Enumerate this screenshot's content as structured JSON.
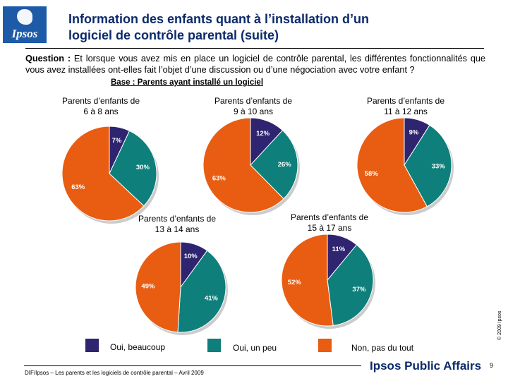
{
  "header": {
    "logo_text": "Ipsos",
    "title_line1": "Information des enfants quant à l’installation d’un",
    "title_line2": "logiciel de contrôle parental (suite)"
  },
  "question": {
    "label": "Question :",
    "text": "Et lorsque vous avez mis en place un logiciel de contrôle parental, les différentes fonctionnalités que vous avez installées ont-elles fait l’objet d’une discussion ou d’une négociation avec votre enfant ?",
    "base": "Base : Parents ayant installé un logiciel"
  },
  "legend": [
    {
      "label": "Oui, beaucoup",
      "color": "#2e2470"
    },
    {
      "label": "Oui, un peu",
      "color": "#0e7f7a"
    },
    {
      "label": "Non, pas du tout",
      "color": "#e85d12"
    }
  ],
  "chart_data": [
    {
      "type": "pie",
      "title": "Parents d’enfants de 6 à 8 ans",
      "title_line1": "Parents d’enfants de",
      "title_line2": "6 à 8 ans",
      "categories": [
        "Oui, beaucoup",
        "Oui, un peu",
        "Non, pas du tout"
      ],
      "values": [
        7,
        30,
        63
      ],
      "labels": [
        "7%",
        "30%",
        "63%"
      ]
    },
    {
      "type": "pie",
      "title": "Parents d’enfants de 9 à 10 ans",
      "title_line1": "Parents d’enfants de",
      "title_line2": "9 à 10 ans",
      "categories": [
        "Oui, beaucoup",
        "Oui, un peu",
        "Non, pas du tout"
      ],
      "values": [
        12,
        26,
        63
      ],
      "labels": [
        "12%",
        "26%",
        "63%"
      ]
    },
    {
      "type": "pie",
      "title": "Parents d’enfants de 11 à 12 ans",
      "title_line1": "Parents d’enfants de",
      "title_line2": "11 à 12 ans",
      "categories": [
        "Oui, beaucoup",
        "Oui, un peu",
        "Non, pas du tout"
      ],
      "values": [
        9,
        33,
        58
      ],
      "labels": [
        "9%",
        "33%",
        "58%"
      ]
    },
    {
      "type": "pie",
      "title": "Parents d’enfants de 13 à 14 ans",
      "title_line1": "Parents d’enfants de",
      "title_line2": "13 à 14 ans",
      "categories": [
        "Oui, beaucoup",
        "Oui, un peu",
        "Non, pas du tout"
      ],
      "values": [
        10,
        41,
        49
      ],
      "labels": [
        "10%",
        "41%",
        "49%"
      ]
    },
    {
      "type": "pie",
      "title": "Parents d’enfants de 15 à 17 ans",
      "title_line1": "Parents d’enfants de",
      "title_line2": "15 à 17 ans",
      "categories": [
        "Oui, beaucoup",
        "Oui, un peu",
        "Non, pas du tout"
      ],
      "values": [
        11,
        37,
        52
      ],
      "labels": [
        "11%",
        "37%",
        "52%"
      ]
    }
  ],
  "footer": {
    "source": "DIF/Ipsos – Les parents et les logiciels de contrôle parental – Avril 2009",
    "brand": "Ipsos Public Affairs",
    "page": "9",
    "copyright": "© 2009 Ipsos"
  }
}
